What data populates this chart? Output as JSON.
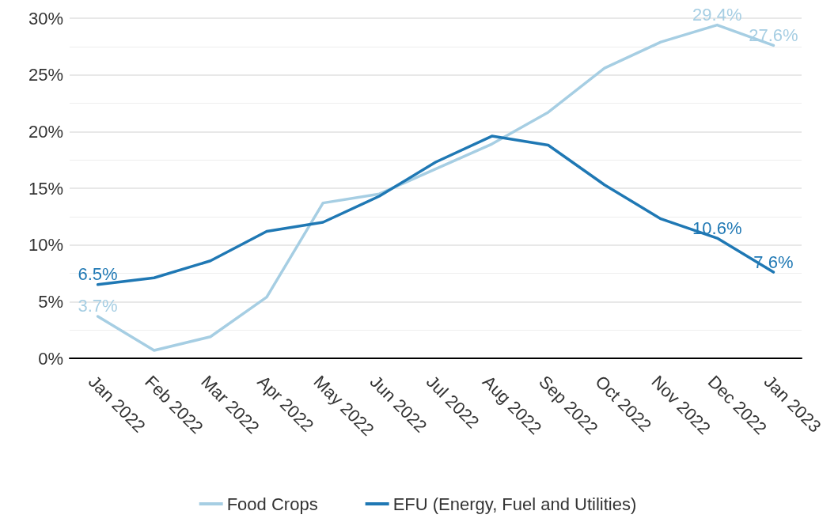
{
  "chart_data": {
    "type": "line",
    "categories": [
      "Jan 2022",
      "Feb 2022",
      "Mar 2022",
      "Apr 2022",
      "May 2022",
      "Jun 2022",
      "Jul 2022",
      "Aug 2022",
      "Sep 2022",
      "Oct 2022",
      "Nov 2022",
      "Dec 2022",
      "Jan 2023"
    ],
    "series": [
      {
        "name": "Food Crops",
        "color": "#a6cee3",
        "values": [
          3.7,
          0.7,
          1.9,
          5.4,
          13.7,
          14.5,
          16.7,
          18.9,
          21.7,
          25.6,
          27.9,
          29.4,
          27.6
        ],
        "value_labels": [
          "3.7%",
          null,
          null,
          null,
          null,
          null,
          null,
          null,
          null,
          null,
          null,
          "29.4%",
          "27.6%"
        ]
      },
      {
        "name": "EFU (Energy, Fuel and Utilities)",
        "color": "#1f78b4",
        "values": [
          6.5,
          7.1,
          8.6,
          11.2,
          12.0,
          14.3,
          17.3,
          19.6,
          18.8,
          15.3,
          12.3,
          10.6,
          7.6
        ],
        "value_labels": [
          "6.5%",
          null,
          null,
          null,
          null,
          null,
          null,
          null,
          null,
          null,
          null,
          "10.6%",
          "7.6%"
        ]
      }
    ],
    "ylim": [
      0,
      30
    ],
    "yticks": [
      {
        "value": 0,
        "label": "0%"
      },
      {
        "value": 5,
        "label": "5%"
      },
      {
        "value": 10,
        "label": "10%"
      },
      {
        "value": 15,
        "label": "15%"
      },
      {
        "value": 20,
        "label": "20%"
      },
      {
        "value": 25,
        "label": "25%"
      },
      {
        "value": 30,
        "label": "30%"
      }
    ],
    "grid": "y",
    "legend": "bottom",
    "marker": "none",
    "line_style": "solid"
  }
}
